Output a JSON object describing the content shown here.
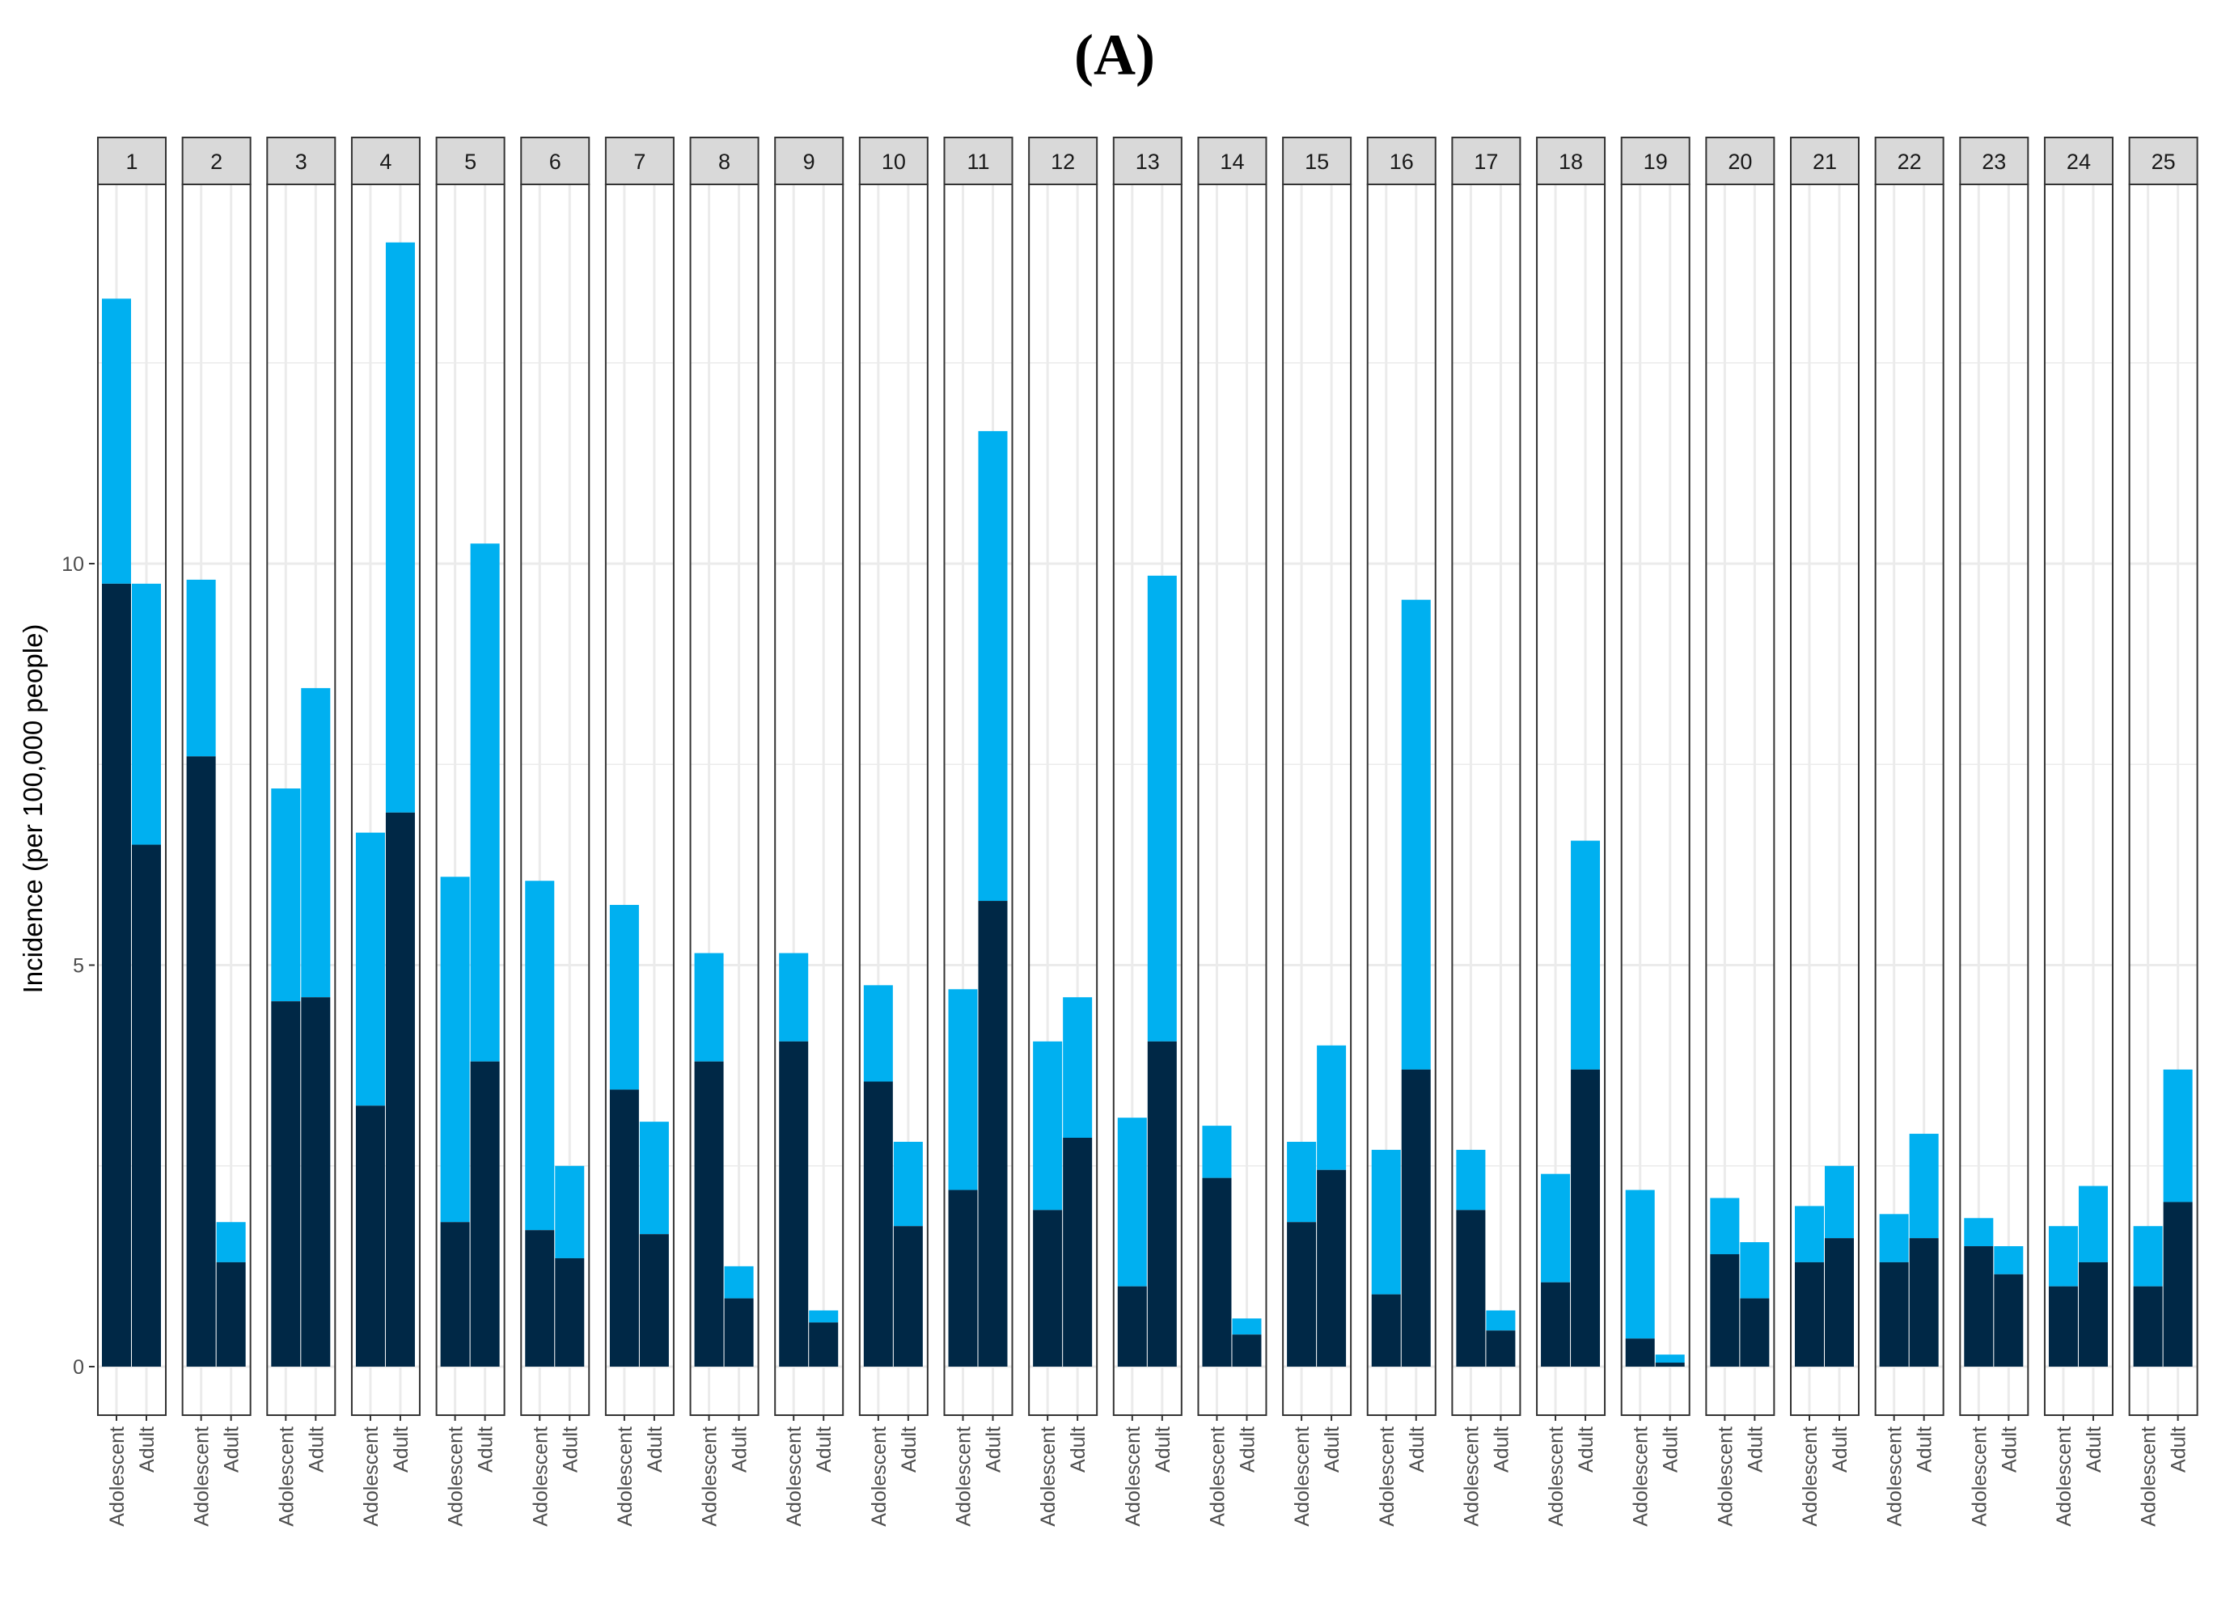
{
  "title": "(A)",
  "chart_data": {
    "type": "bar",
    "subtype": "stacked, faceted",
    "title": "(A)",
    "xlabel": "",
    "ylabel": "Incidence (per 100,000 people)",
    "ylim": [
      -0.6,
      15.1
    ],
    "yticks": [
      0,
      5,
      10
    ],
    "grid": true,
    "legend": "none",
    "colors": {
      "lower": "#002846",
      "upper": "#00b0f0",
      "strip_bg": "#d9d9d9",
      "grid": "#ebebeb"
    },
    "categories": [
      "Adolescent",
      "Adult"
    ],
    "facets": [
      {
        "label": "1",
        "total": [
          13.3,
          9.75
        ],
        "lower": [
          9.75,
          6.5
        ]
      },
      {
        "label": "2",
        "total": [
          9.8,
          1.8
        ],
        "lower": [
          7.6,
          1.3
        ]
      },
      {
        "label": "3",
        "total": [
          7.2,
          8.45
        ],
        "lower": [
          4.55,
          4.6
        ]
      },
      {
        "label": "4",
        "total": [
          6.65,
          14.0
        ],
        "lower": [
          3.25,
          6.9
        ]
      },
      {
        "label": "5",
        "total": [
          6.1,
          10.25
        ],
        "lower": [
          1.8,
          3.8
        ]
      },
      {
        "label": "6",
        "total": [
          6.05,
          2.5
        ],
        "lower": [
          1.7,
          1.35
        ]
      },
      {
        "label": "7",
        "total": [
          5.75,
          3.05
        ],
        "lower": [
          3.45,
          1.65
        ]
      },
      {
        "label": "8",
        "total": [
          5.15,
          1.25
        ],
        "lower": [
          3.8,
          0.85
        ]
      },
      {
        "label": "9",
        "total": [
          5.15,
          0.7
        ],
        "lower": [
          4.05,
          0.55
        ]
      },
      {
        "label": "10",
        "total": [
          4.75,
          2.8
        ],
        "lower": [
          3.55,
          1.75
        ]
      },
      {
        "label": "11",
        "total": [
          4.7,
          11.65
        ],
        "lower": [
          2.2,
          5.8
        ]
      },
      {
        "label": "12",
        "total": [
          4.05,
          4.6
        ],
        "lower": [
          1.95,
          2.85
        ]
      },
      {
        "label": "13",
        "total": [
          3.1,
          9.85
        ],
        "lower": [
          1.0,
          4.05
        ]
      },
      {
        "label": "14",
        "total": [
          3.0,
          0.6
        ],
        "lower": [
          2.35,
          0.4
        ]
      },
      {
        "label": "15",
        "total": [
          2.8,
          4.0
        ],
        "lower": [
          1.8,
          2.45
        ]
      },
      {
        "label": "16",
        "total": [
          2.7,
          9.55
        ],
        "lower": [
          0.9,
          3.7
        ]
      },
      {
        "label": "17",
        "total": [
          2.7,
          0.7
        ],
        "lower": [
          1.95,
          0.45
        ]
      },
      {
        "label": "18",
        "total": [
          2.4,
          6.55
        ],
        "lower": [
          1.05,
          3.7
        ]
      },
      {
        "label": "19",
        "total": [
          2.2,
          0.15
        ],
        "lower": [
          0.35,
          0.05
        ]
      },
      {
        "label": "20",
        "total": [
          2.1,
          1.55
        ],
        "lower": [
          1.4,
          0.85
        ]
      },
      {
        "label": "21",
        "total": [
          2.0,
          2.5
        ],
        "lower": [
          1.3,
          1.6
        ]
      },
      {
        "label": "22",
        "total": [
          1.9,
          2.9
        ],
        "lower": [
          1.3,
          1.6
        ]
      },
      {
        "label": "23",
        "total": [
          1.85,
          1.5
        ],
        "lower": [
          1.5,
          1.15
        ]
      },
      {
        "label": "24",
        "total": [
          1.75,
          2.25
        ],
        "lower": [
          1.0,
          1.3
        ]
      },
      {
        "label": "25",
        "total": [
          1.75,
          3.7
        ],
        "lower": [
          1.0,
          2.05
        ]
      }
    ]
  }
}
